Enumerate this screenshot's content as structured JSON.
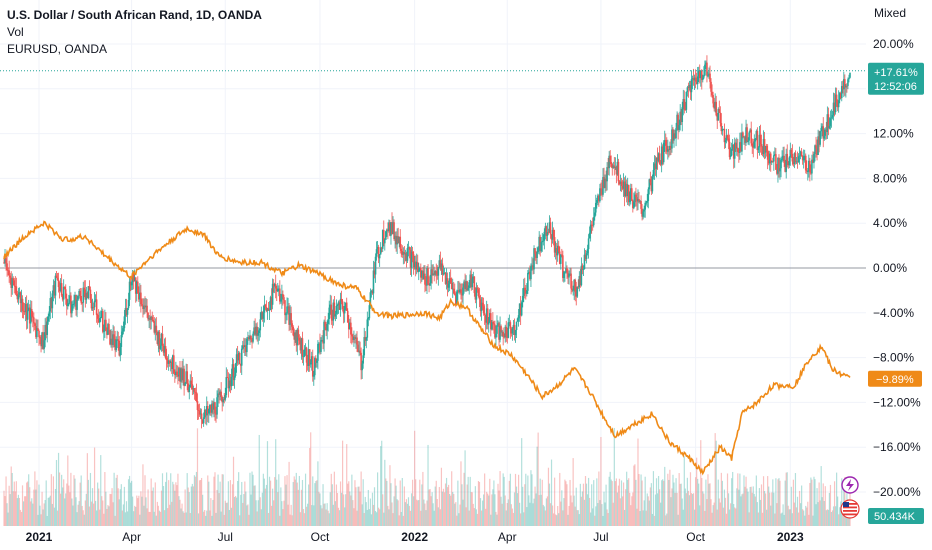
{
  "chart_data": {
    "type": "line",
    "title": "U.S. Dollar / South African Rand, 1D, OANDA",
    "indicators": [
      "Vol",
      "EURUSD, OANDA"
    ],
    "scale_mode": "Mixed",
    "y_unit": "%",
    "ylim": [
      -21,
      21
    ],
    "y_ticks": [
      {
        "value": 20,
        "label": "20.00%"
      },
      {
        "value": 16,
        "label": "16.00%"
      },
      {
        "value": 12,
        "label": "12.00%"
      },
      {
        "value": 8,
        "label": "8.00%"
      },
      {
        "value": 4,
        "label": "4.00%"
      },
      {
        "value": 0,
        "label": "0.00%"
      },
      {
        "value": -4,
        "label": "−4.00%"
      },
      {
        "value": -8,
        "label": "−8.00%"
      },
      {
        "value": -12,
        "label": "−12.00%"
      },
      {
        "value": -16,
        "label": "−16.00%"
      },
      {
        "value": -20,
        "label": "−20.00%"
      }
    ],
    "x_ticks": [
      {
        "date": "2021-01-01",
        "label": "2021",
        "bold": true
      },
      {
        "date": "2021-04-01",
        "label": "Apr",
        "bold": false
      },
      {
        "date": "2021-07-01",
        "label": "Jul",
        "bold": false
      },
      {
        "date": "2021-10-01",
        "label": "Oct",
        "bold": false
      },
      {
        "date": "2022-01-01",
        "label": "2022",
        "bold": true
      },
      {
        "date": "2022-04-01",
        "label": "Apr",
        "bold": false
      },
      {
        "date": "2022-07-01",
        "label": "Jul",
        "bold": false
      },
      {
        "date": "2022-10-01",
        "label": "Oct",
        "bold": false
      },
      {
        "date": "2023-01-01",
        "label": "2023",
        "bold": true
      }
    ],
    "x_range": [
      "2020-11-28",
      "2023-02-28"
    ],
    "grid": true,
    "baseline": 0,
    "series": [
      {
        "name": "U.S. Dollar / South African Rand",
        "style": "candles",
        "up_color": "#26a69a",
        "down_color": "#ef5350",
        "last_value_label": "+17.61%",
        "countdown_label": "12:52:06",
        "line_color": "#26a69a",
        "points": [
          [
            "2020-11-28",
            0.5
          ],
          [
            "2020-12-15",
            -3
          ],
          [
            "2021-01-05",
            -6.5
          ],
          [
            "2021-01-18",
            -1
          ],
          [
            "2021-02-01",
            -3.5
          ],
          [
            "2021-02-15",
            -2
          ],
          [
            "2021-03-05",
            -5
          ],
          [
            "2021-03-20",
            -7.5
          ],
          [
            "2021-04-01",
            -0.5
          ],
          [
            "2021-04-20",
            -5
          ],
          [
            "2021-05-10",
            -8.5
          ],
          [
            "2021-05-25",
            -10
          ],
          [
            "2021-06-10",
            -13.5
          ],
          [
            "2021-06-25",
            -12
          ],
          [
            "2021-07-15",
            -8
          ],
          [
            "2021-08-05",
            -4.5
          ],
          [
            "2021-08-20",
            -1.5
          ],
          [
            "2021-09-05",
            -5.5
          ],
          [
            "2021-09-25",
            -9
          ],
          [
            "2021-10-10",
            -4
          ],
          [
            "2021-10-25",
            -3.5
          ],
          [
            "2021-11-10",
            -8.5
          ],
          [
            "2021-11-25",
            1
          ],
          [
            "2021-12-05",
            4
          ],
          [
            "2021-12-20",
            2
          ],
          [
            "2022-01-10",
            -1
          ],
          [
            "2022-01-25",
            0
          ],
          [
            "2022-02-10",
            -2.5
          ],
          [
            "2022-02-25",
            -1
          ],
          [
            "2022-03-10",
            -4
          ],
          [
            "2022-03-25",
            -6
          ],
          [
            "2022-04-10",
            -5
          ],
          [
            "2022-04-25",
            0.5
          ],
          [
            "2022-05-10",
            4
          ],
          [
            "2022-05-25",
            0
          ],
          [
            "2022-06-08",
            -2
          ],
          [
            "2022-06-20",
            3
          ],
          [
            "2022-07-10",
            10
          ],
          [
            "2022-07-25",
            7
          ],
          [
            "2022-08-10",
            5
          ],
          [
            "2022-08-25",
            9.5
          ],
          [
            "2022-09-10",
            12
          ],
          [
            "2022-09-25",
            16
          ],
          [
            "2022-10-10",
            18
          ],
          [
            "2022-10-25",
            13
          ],
          [
            "2022-11-05",
            10
          ],
          [
            "2022-11-20",
            12
          ],
          [
            "2022-12-05",
            11
          ],
          [
            "2022-12-20",
            9
          ],
          [
            "2023-01-05",
            10
          ],
          [
            "2023-01-20",
            9
          ],
          [
            "2023-02-01",
            12
          ],
          [
            "2023-02-15",
            15
          ],
          [
            "2023-02-28",
            17.61
          ]
        ]
      },
      {
        "name": "EURUSD, OANDA",
        "style": "line",
        "color": "#ef8a17",
        "last_value_label": "−9.89%",
        "points": [
          [
            "2020-11-28",
            1
          ],
          [
            "2020-12-20",
            3
          ],
          [
            "2021-01-06",
            4
          ],
          [
            "2021-01-25",
            2.5
          ],
          [
            "2021-02-15",
            2.8
          ],
          [
            "2021-03-05",
            1.2
          ],
          [
            "2021-03-31",
            -0.8
          ],
          [
            "2021-04-20",
            1
          ],
          [
            "2021-05-10",
            2.5
          ],
          [
            "2021-05-25",
            3.5
          ],
          [
            "2021-06-10",
            3
          ],
          [
            "2021-06-25",
            1
          ],
          [
            "2021-07-15",
            0.5
          ],
          [
            "2021-08-05",
            0.5
          ],
          [
            "2021-08-25",
            -0.5
          ],
          [
            "2021-09-10",
            0.2
          ],
          [
            "2021-09-30",
            -0.5
          ],
          [
            "2021-10-20",
            -1.5
          ],
          [
            "2021-11-05",
            -1.8
          ],
          [
            "2021-11-25",
            -4
          ],
          [
            "2021-12-10",
            -4.3
          ],
          [
            "2021-12-25",
            -4.2
          ],
          [
            "2022-01-10",
            -4
          ],
          [
            "2022-01-25",
            -4.5
          ],
          [
            "2022-02-05",
            -3
          ],
          [
            "2022-02-20",
            -3.5
          ],
          [
            "2022-03-07",
            -5.5
          ],
          [
            "2022-03-20",
            -7
          ],
          [
            "2022-04-05",
            -7.8
          ],
          [
            "2022-04-20",
            -9.5
          ],
          [
            "2022-05-05",
            -11.5
          ],
          [
            "2022-05-20",
            -10.5
          ],
          [
            "2022-06-05",
            -9
          ],
          [
            "2022-06-20",
            -11
          ],
          [
            "2022-07-05",
            -13.5
          ],
          [
            "2022-07-15",
            -15
          ],
          [
            "2022-08-01",
            -14
          ],
          [
            "2022-08-20",
            -13
          ],
          [
            "2022-09-05",
            -15.5
          ],
          [
            "2022-09-25",
            -17
          ],
          [
            "2022-10-08",
            -18.3
          ],
          [
            "2022-10-25",
            -16
          ],
          [
            "2022-11-05",
            -17
          ],
          [
            "2022-11-15",
            -13
          ],
          [
            "2022-11-30",
            -12
          ],
          [
            "2022-12-15",
            -10.5
          ],
          [
            "2023-01-05",
            -10.5
          ],
          [
            "2023-01-20",
            -8
          ],
          [
            "2023-02-01",
            -7
          ],
          [
            "2023-02-10",
            -9
          ],
          [
            "2023-02-28",
            -9.89
          ]
        ]
      }
    ],
    "volume": {
      "name": "Vol",
      "last_label": "50.434K",
      "label_color": "#26a69a"
    }
  },
  "overlays": {
    "flash_icon": "lightning-icon",
    "flag_icon": "us-flag-icon"
  }
}
